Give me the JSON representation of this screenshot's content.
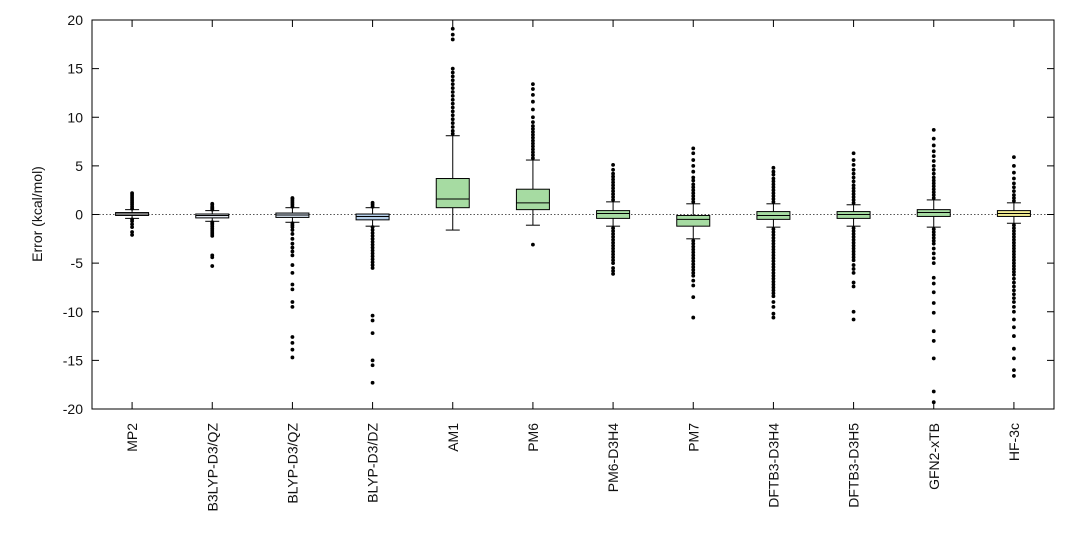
{
  "chart_data": {
    "type": "box",
    "ylabel": "Error (kcal/mol)",
    "xlabel": "",
    "ylim": [
      -20,
      20
    ],
    "yticks": [
      20,
      15,
      10,
      5,
      0,
      -5,
      -10,
      -15,
      -20
    ],
    "grid": false,
    "zero_line": true,
    "legend": "none",
    "categories": [
      "MP2",
      "B3LYP-D3/QZ",
      "BLYP-D3/QZ",
      "BLYP-D3/DZ",
      "AM1",
      "PM6",
      "PM6-D3H4",
      "PM7",
      "DFTB3-D3H4",
      "DFTB3-D3H5",
      "GFN2-xTB",
      "HF-3c"
    ],
    "series": [
      {
        "name": "MP2",
        "color": "#ffffff",
        "whisker_low": -0.4,
        "q1": -0.1,
        "median": 0.05,
        "q3": 0.2,
        "whisker_high": 0.5,
        "outliers": [
          -1.3,
          -2.1,
          -1.8,
          -1.0,
          -0.7,
          -0.5,
          0.6,
          0.8,
          1.0,
          1.2,
          1.4,
          1.6,
          1.8,
          2.0,
          2.2
        ]
      },
      {
        "name": "B3LYP-D3/QZ",
        "color": "#dfe6ee",
        "whisker_low": -0.7,
        "q1": -0.35,
        "median": -0.1,
        "q3": 0.05,
        "whisker_high": 0.4,
        "outliers": [
          -0.8,
          -1.0,
          -1.2,
          -1.4,
          -1.6,
          -1.8,
          -2.0,
          -2.2,
          -0.9,
          -4.2,
          -4.4,
          -5.3,
          0.5,
          0.6,
          0.7,
          0.8,
          1.0,
          1.1
        ]
      },
      {
        "name": "BLYP-D3/QZ",
        "color": "#d8e5f2",
        "whisker_low": -0.8,
        "q1": -0.3,
        "median": -0.05,
        "q3": 0.15,
        "whisker_high": 0.7,
        "outliers": [
          -0.9,
          -1.1,
          -1.3,
          -1.6,
          -2.0,
          -2.5,
          -3.0,
          -3.4,
          -3.8,
          -4.2,
          -5.2,
          -6.0,
          -7.2,
          -7.7,
          -9.0,
          -9.5,
          -12.6,
          -13.2,
          -13.9,
          -14.7,
          0.8,
          1.0,
          1.2,
          1.4,
          1.6,
          1.7
        ]
      },
      {
        "name": "BLYP-D3/DZ",
        "color": "#b7d0ea",
        "whisker_low": -1.2,
        "q1": -0.55,
        "median": -0.2,
        "q3": 0.05,
        "whisker_high": 0.7,
        "outliers": [
          -1.3,
          -1.6,
          -1.9,
          -2.2,
          -2.5,
          -2.8,
          -3.1,
          -3.4,
          -3.7,
          -4.0,
          -4.3,
          -4.6,
          -4.9,
          -5.2,
          -5.5,
          -10.4,
          -10.9,
          -12.2,
          -15.0,
          -15.5,
          -17.3,
          0.8,
          1.0,
          1.2
        ]
      },
      {
        "name": "AM1",
        "color": "#a6dba2",
        "whisker_low": -1.6,
        "q1": 0.7,
        "median": 1.6,
        "q3": 3.7,
        "whisker_high": 8.1,
        "outliers": [
          8.3,
          8.6,
          9.0,
          9.4,
          9.8,
          10.2,
          10.6,
          11.0,
          11.4,
          11.8,
          12.2,
          12.6,
          13.0,
          13.4,
          13.8,
          14.2,
          14.6,
          15.0,
          18.0,
          18.5,
          19.1
        ]
      },
      {
        "name": "PM6",
        "color": "#a6dba2",
        "whisker_low": -1.1,
        "q1": 0.5,
        "median": 1.2,
        "q3": 2.6,
        "whisker_high": 5.6,
        "outliers": [
          -3.1,
          5.8,
          6.1,
          6.4,
          6.7,
          7.0,
          7.3,
          7.6,
          7.9,
          8.2,
          8.5,
          8.8,
          9.1,
          9.5,
          10.0,
          10.8,
          11.6,
          12.3,
          12.9,
          13.4
        ]
      },
      {
        "name": "PM6-D3H4",
        "color": "#a6dba2",
        "whisker_low": -1.2,
        "q1": -0.4,
        "median": 0.1,
        "q3": 0.4,
        "whisker_high": 1.3,
        "outliers": [
          -1.4,
          -1.7,
          -2.0,
          -2.3,
          -2.6,
          -2.9,
          -3.2,
          -3.5,
          -3.8,
          -4.1,
          -4.4,
          -4.7,
          -5.0,
          -5.5,
          -5.8,
          -6.1,
          1.5,
          1.8,
          2.1,
          2.4,
          2.7,
          3.0,
          3.3,
          3.6,
          3.9,
          4.2,
          4.6,
          5.1
        ]
      },
      {
        "name": "PM7",
        "color": "#a6dba2",
        "whisker_low": -2.5,
        "q1": -1.2,
        "median": -0.5,
        "q3": -0.1,
        "whisker_high": 1.1,
        "outliers": [
          -2.7,
          -3.0,
          -3.3,
          -3.6,
          -3.9,
          -4.2,
          -4.5,
          -4.8,
          -5.1,
          -5.4,
          -5.7,
          -6.0,
          -6.3,
          -6.8,
          -7.3,
          -8.5,
          -10.6,
          1.3,
          1.6,
          1.9,
          2.2,
          2.5,
          2.8,
          3.1,
          3.5,
          3.8,
          4.4,
          5.0,
          5.6,
          6.3,
          6.8
        ]
      },
      {
        "name": "DFTB3-D3H4",
        "color": "#a6dba2",
        "whisker_low": -1.3,
        "q1": -0.5,
        "median": -0.1,
        "q3": 0.3,
        "whisker_high": 1.1,
        "outliers": [
          -1.5,
          -1.8,
          -2.1,
          -2.4,
          -2.7,
          -3.0,
          -3.3,
          -3.6,
          -3.9,
          -4.2,
          -4.5,
          -4.8,
          -5.1,
          -5.4,
          -5.7,
          -6.0,
          -6.3,
          -6.6,
          -6.9,
          -7.2,
          -7.5,
          -7.8,
          -8.1,
          -8.4,
          -9.0,
          -9.5,
          -10.2,
          -10.6,
          1.3,
          1.6,
          1.9,
          2.2,
          2.5,
          2.8,
          3.1,
          3.4,
          3.7,
          4.1,
          4.4,
          4.8
        ]
      },
      {
        "name": "DFTB3-D3H5",
        "color": "#a6dba2",
        "whisker_low": -1.2,
        "q1": -0.4,
        "median": 0.0,
        "q3": 0.3,
        "whisker_high": 1.0,
        "outliers": [
          -1.4,
          -1.7,
          -2.0,
          -2.3,
          -2.6,
          -2.9,
          -3.2,
          -3.5,
          -3.8,
          -4.1,
          -4.4,
          -4.7,
          -5.2,
          -5.6,
          -6.0,
          -7.0,
          -7.4,
          -10.0,
          -10.8,
          1.2,
          1.5,
          1.8,
          2.1,
          2.4,
          2.7,
          3.0,
          3.4,
          3.8,
          4.2,
          4.6,
          5.1,
          5.6,
          6.3
        ]
      },
      {
        "name": "GFN2-xTB",
        "color": "#a6dba2",
        "whisker_low": -1.3,
        "q1": -0.2,
        "median": 0.2,
        "q3": 0.5,
        "whisker_high": 1.5,
        "outliers": [
          -1.5,
          -1.8,
          -2.1,
          -2.4,
          -2.7,
          -3.0,
          -3.5,
          -4.0,
          -4.5,
          -5.0,
          -6.5,
          -7.1,
          -8.0,
          -9.1,
          -10.1,
          -12.0,
          -13.0,
          -14.8,
          -18.2,
          -19.3,
          1.7,
          2.0,
          2.3,
          2.6,
          2.9,
          3.2,
          3.5,
          3.8,
          4.2,
          4.6,
          5.0,
          5.5,
          6.0,
          6.5,
          7.1,
          7.8,
          8.7
        ]
      },
      {
        "name": "HF-3c",
        "color": "#f2ec94",
        "whisker_low": -0.9,
        "q1": -0.2,
        "median": 0.1,
        "q3": 0.4,
        "whisker_high": 1.2,
        "outliers": [
          -1.1,
          -1.4,
          -1.7,
          -2.0,
          -2.3,
          -2.6,
          -2.9,
          -3.2,
          -3.5,
          -3.8,
          -4.1,
          -4.4,
          -4.7,
          -5.0,
          -5.3,
          -5.6,
          -5.9,
          -6.2,
          -6.6,
          -7.0,
          -7.4,
          -7.8,
          -8.2,
          -8.6,
          -9.0,
          -9.5,
          -10.0,
          -10.8,
          -11.6,
          -12.5,
          -13.8,
          -14.8,
          -16.0,
          -16.6,
          1.4,
          1.7,
          2.0,
          2.4,
          2.8,
          3.2,
          3.7,
          4.3,
          5.0,
          5.9
        ]
      }
    ]
  }
}
